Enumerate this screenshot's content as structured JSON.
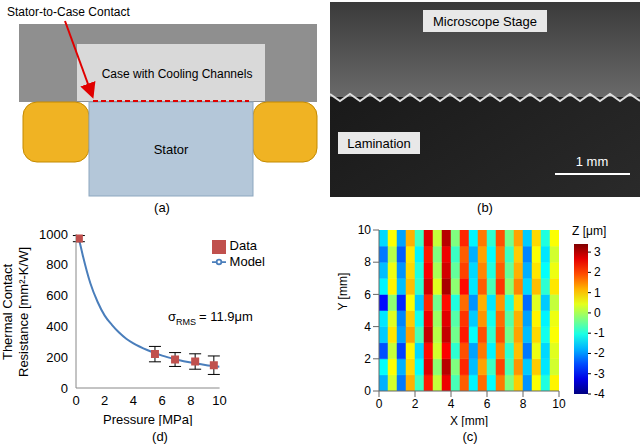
{
  "panel_a": {
    "label": "(a)",
    "texts": {
      "contact": "Stator-to-Case Contact",
      "case": "Case with Cooling Channels",
      "stator": "Stator"
    }
  },
  "panel_b": {
    "label": "(b)",
    "texts": {
      "stage": "Microscope Stage",
      "lamination": "Lamination",
      "scale_bar": "1 mm"
    }
  },
  "chart_data": [
    {
      "type": "heatmap",
      "label": "(c)",
      "x_label": "X [mm]",
      "y_label": "Y [mm]",
      "xlim": [
        0,
        10
      ],
      "xticks": [
        0,
        2,
        4,
        6,
        8,
        10
      ],
      "ylim": [
        0,
        10
      ],
      "yticks": [
        0,
        2,
        4,
        6,
        8,
        10
      ],
      "x_edges": [
        0,
        0.5,
        1,
        1.5,
        2,
        2.5,
        3,
        3.5,
        4,
        4.5,
        5,
        5.5,
        6,
        6.5,
        7,
        7.5,
        8,
        8.5,
        9,
        9.5,
        10
      ],
      "y_edges": [
        0,
        1,
        2,
        3,
        4,
        5,
        6,
        7,
        8,
        9,
        10
      ],
      "cells": [
        [
          -1.8,
          0.3,
          -2.2,
          1.2,
          -0.8,
          2.3,
          0.2,
          2.6,
          -0.7,
          1.8,
          -1.3,
          1.7,
          -1.2,
          1.6,
          -0.3,
          1.0,
          -2.0,
          0.6,
          -1.0,
          0.7
        ],
        [
          -1.2,
          0.6,
          -1.8,
          0.9,
          -1.2,
          2.7,
          -0.2,
          3.0,
          -0.3,
          2.2,
          -1.7,
          1.3,
          -0.8,
          2.0,
          -0.7,
          1.4,
          -1.6,
          1.0,
          -1.4,
          0.3
        ],
        [
          -2.5,
          0.2,
          -2.6,
          0.7,
          -1.5,
          2.4,
          0.3,
          2.5,
          -0.9,
          1.9,
          -1.9,
          1.6,
          -1.3,
          1.5,
          -0.9,
          1.1,
          -2.2,
          0.5,
          -1.5,
          0.4
        ],
        [
          -1.6,
          0.8,
          -1.9,
          1.3,
          -0.7,
          2.9,
          0.1,
          2.9,
          -0.4,
          2.3,
          -1.2,
          1.9,
          -0.9,
          1.9,
          -0.4,
          1.3,
          -1.7,
          0.9,
          -1.1,
          0.6
        ],
        [
          -1.4,
          0.4,
          -2.1,
          1.0,
          -1.1,
          2.6,
          -0.1,
          2.7,
          -0.6,
          2.1,
          -1.6,
          1.4,
          -1.1,
          1.7,
          -0.6,
          1.2,
          -1.9,
          0.7,
          -1.3,
          0.5
        ],
        [
          -3.0,
          -0.2,
          -2.8,
          0.6,
          -1.6,
          2.2,
          -0.4,
          2.4,
          -1.0,
          1.7,
          -2.0,
          1.2,
          -1.4,
          1.4,
          -1.0,
          0.9,
          -2.3,
          0.4,
          -1.6,
          0.2
        ],
        [
          -1.3,
          0.7,
          -1.7,
          1.1,
          -0.9,
          2.8,
          0.4,
          3.1,
          -0.2,
          2.4,
          -1.4,
          1.8,
          -0.7,
          2.1,
          -0.2,
          1.5,
          -1.5,
          1.1,
          -0.9,
          0.8
        ],
        [
          -1.7,
          0.5,
          -2.0,
          0.9,
          -1.0,
          2.5,
          0.0,
          2.8,
          -0.5,
          2.0,
          -1.5,
          1.5,
          -1.0,
          1.8,
          -0.5,
          1.2,
          -1.8,
          0.8,
          -1.2,
          0.5
        ],
        [
          -2.2,
          0.1,
          -2.4,
          0.8,
          -1.3,
          2.3,
          -0.3,
          2.6,
          -0.8,
          1.8,
          -1.8,
          1.3,
          -1.2,
          1.6,
          -0.8,
          1.0,
          -2.1,
          0.6,
          -1.4,
          0.3
        ],
        [
          -1.5,
          0.6,
          -1.9,
          1.2,
          -0.8,
          2.7,
          0.2,
          3.0,
          -0.3,
          2.2,
          -1.3,
          1.6,
          -0.9,
          1.9,
          -0.4,
          1.3,
          -1.6,
          0.9,
          -1.0,
          0.6
        ]
      ],
      "colorbar": {
        "title": "Z [μm]",
        "range": [
          -4,
          3.4
        ],
        "ticks": [
          -4,
          -3,
          -2,
          -1,
          0,
          1,
          2,
          3
        ]
      }
    },
    {
      "type": "line",
      "label": "(d)",
      "y_label": [
        "Thermal Contact",
        "Resistance [mm²-K/W]"
      ],
      "x_label": "Pressure [MPa]",
      "xlim": [
        0,
        10
      ],
      "xticks": [
        0,
        2,
        4,
        6,
        8,
        10
      ],
      "ylim": [
        0,
        1000
      ],
      "yticks": [
        0,
        200,
        400,
        600,
        800,
        1000
      ],
      "legend": "upper right",
      "annotation": {
        "symbol": "σ",
        "subscript": "RMS",
        "text": "= 11.9μm"
      },
      "series": [
        {
          "name": "Model",
          "type": "line",
          "color": "#4a7ebb",
          "x": [
            0.15,
            0.3,
            0.5,
            0.75,
            1,
            1.5,
            2,
            2.5,
            3,
            3.5,
            4,
            5,
            6,
            7,
            8,
            9,
            10
          ],
          "values": [
            985,
            930,
            850,
            760,
            680,
            560,
            470,
            410,
            360,
            320,
            290,
            245,
            210,
            185,
            165,
            150,
            138
          ]
        },
        {
          "name": "Data",
          "type": "scatter",
          "marker": "square",
          "color": "#c0504d",
          "x": [
            0.2,
            5.5,
            6.9,
            8.3,
            9.6
          ],
          "values": [
            970,
            220,
            185,
            172,
            148
          ],
          "errors": [
            20,
            50,
            45,
            50,
            60
          ]
        }
      ]
    }
  ]
}
